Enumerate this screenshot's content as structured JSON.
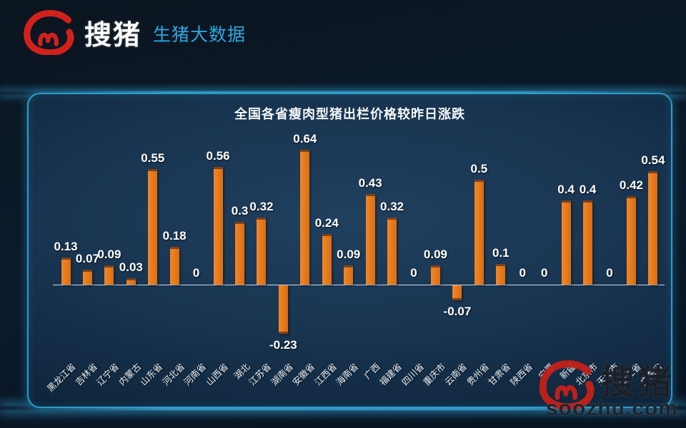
{
  "header": {
    "brand": "搜猪",
    "subtitle": "生猪大数据",
    "logo_icon": "souzhu-swirl-logo",
    "brand_color": "#ffffff",
    "subtitle_color": "#2aa7e0",
    "logo_color": "#d2211c"
  },
  "chart_data": {
    "type": "bar",
    "title": "全国各省瘦肉型猪出栏价格较昨日涨跌",
    "categories": [
      "黑龙江省",
      "吉林省",
      "辽宁省",
      "内蒙古",
      "山东省",
      "河北省",
      "河南省",
      "山西省",
      "湖北",
      "江苏省",
      "湖南省",
      "安徽省",
      "江西省",
      "海南省",
      "广西",
      "福建省",
      "四川省",
      "重庆市",
      "云南省",
      "贵州省",
      "甘肃省",
      "陕西省",
      "宁夏",
      "新疆",
      "北京市",
      "天津市",
      "浙江省",
      "广东省"
    ],
    "values": [
      0.13,
      0.07,
      0.09,
      0.03,
      0.55,
      0.18,
      0,
      0.56,
      0.3,
      0.32,
      -0.23,
      0.64,
      0.24,
      0.09,
      0.43,
      0.32,
      0,
      0.09,
      -0.07,
      0.5,
      0.1,
      0,
      0,
      0.4,
      0.4,
      0,
      0.42,
      0.54
    ],
    "xlabel": "",
    "ylabel": "",
    "ylim": [
      -0.3,
      0.7
    ],
    "grid": false,
    "legend_position": "none",
    "bar_color": "#e8791c",
    "value_label_color": "#ffffff",
    "axis_line_color": "#dfe6ee",
    "x_label_rotation_deg": -45
  },
  "watermark": {
    "brand": "搜猪",
    "site": "soozhu.com",
    "logo_icon": "souzhu-swirl-logo"
  }
}
